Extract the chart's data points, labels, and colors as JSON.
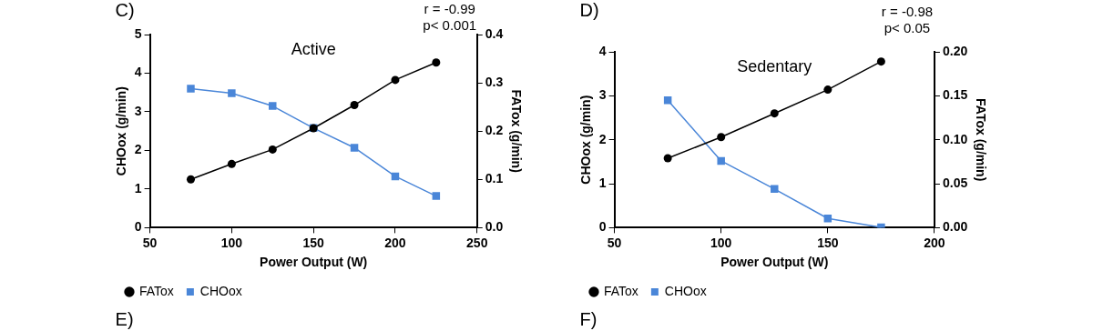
{
  "chart_data": [
    {
      "type": "line",
      "title": "Active",
      "xlabel": "Power Output (W)",
      "ylabel": "CHOox (g/min)",
      "y2label": "FATox (g/min)",
      "x": [
        75,
        100,
        125,
        150,
        175,
        200,
        225
      ],
      "xlim": [
        50,
        250
      ],
      "xticks": [
        50,
        100,
        150,
        200,
        250
      ],
      "ylim": [
        0,
        5
      ],
      "yticks": [
        0,
        1,
        2,
        3,
        4,
        5
      ],
      "y2lim": [
        0,
        0.4
      ],
      "y2ticks": [
        {
          "value": 0,
          "label": "0.0"
        },
        {
          "value": 0.1,
          "label": "0.1"
        },
        {
          "value": 0.2,
          "label": "0.2"
        },
        {
          "value": 0.3,
          "label": "0.3"
        },
        {
          "value": 0.4,
          "label": "0.4"
        }
      ],
      "grid": false,
      "legend": "bottom",
      "line_style": "solid",
      "annotations": [
        "C)",
        "r = -0.99",
        "p< 0.001",
        "E)"
      ],
      "series": [
        {
          "name": "FATox",
          "color": "#000000",
          "marker": "circle",
          "axis": "y2",
          "values": [
            0.1,
            0.132,
            0.162,
            0.206,
            0.254,
            0.306,
            0.342
          ]
        },
        {
          "name": "CHOox",
          "color": "#4a86d8",
          "marker": "square",
          "axis": "y",
          "values": [
            3.6,
            3.48,
            3.15,
            2.58,
            2.07,
            1.33,
            0.82
          ]
        }
      ]
    },
    {
      "type": "line",
      "title": "Sedentary",
      "xlabel": "Power Output (W)",
      "ylabel": "CHOox (g/min)",
      "y2label": "FATox (g/min)",
      "x": [
        75,
        100,
        125,
        150,
        175
      ],
      "xlim": [
        50,
        200
      ],
      "xticks": [
        50,
        100,
        150,
        200
      ],
      "ylim": [
        0,
        4
      ],
      "yticks": [
        0,
        1,
        2,
        3,
        4
      ],
      "y2lim": [
        0,
        0.2
      ],
      "y2ticks": [
        {
          "value": 0,
          "label": "0.00"
        },
        {
          "value": 0.05,
          "label": "0.05"
        },
        {
          "value": 0.1,
          "label": "0.10"
        },
        {
          "value": 0.15,
          "label": "0.15"
        },
        {
          "value": 0.2,
          "label": "0.20"
        }
      ],
      "grid": false,
      "legend": "bottom",
      "line_style": "solid",
      "annotations": [
        "D)",
        "r = -0.98",
        "p< 0.05",
        "F)"
      ],
      "series": [
        {
          "name": "FATox",
          "color": "#000000",
          "marker": "circle",
          "axis": "y2",
          "values": [
            0.079,
            0.103,
            0.13,
            0.157,
            0.189
          ]
        },
        {
          "name": "CHOox",
          "color": "#4a86d8",
          "marker": "square",
          "axis": "y",
          "values": [
            2.9,
            1.52,
            0.88,
            0.21,
            0.01
          ]
        }
      ]
    }
  ]
}
